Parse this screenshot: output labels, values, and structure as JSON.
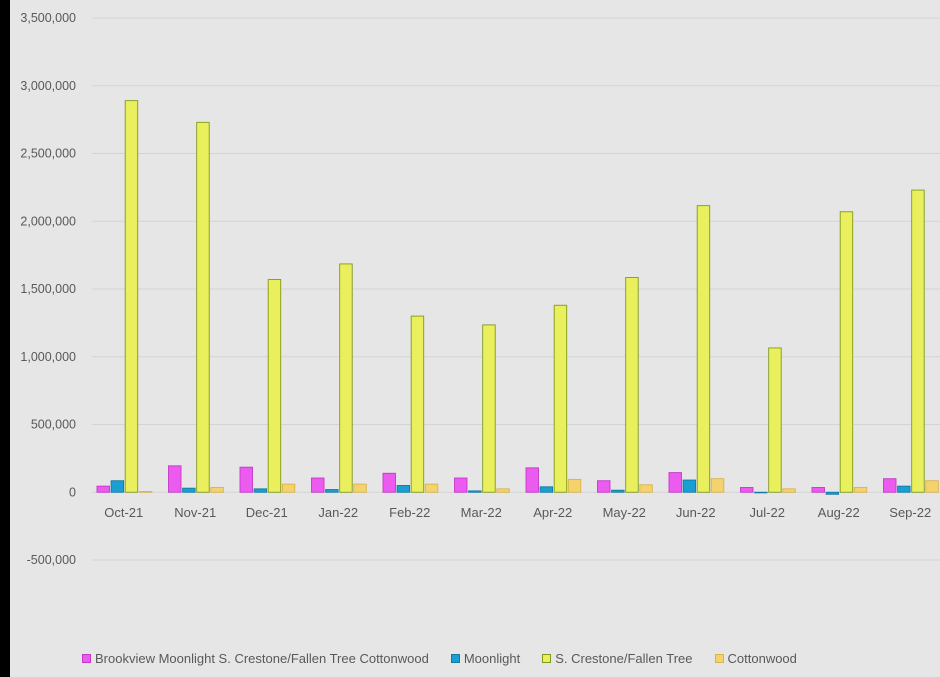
{
  "chart_data": {
    "type": "bar",
    "title": "",
    "xlabel": "",
    "ylabel": "",
    "ylim": [
      -500000,
      3500000
    ],
    "yticks": [
      "3,500,000",
      "3,000,000",
      "2,500,000",
      "2,000,000",
      "1,500,000",
      "1,000,000",
      "500,000",
      "0",
      "-500,000"
    ],
    "grid": true,
    "legend_position": "bottom",
    "categories": [
      "Oct-21",
      "Nov-21",
      "Dec-21",
      "Jan-22",
      "Feb-22",
      "Mar-22",
      "Apr-22",
      "May-22",
      "Jun-22",
      "Jul-22",
      "Aug-22",
      "Sep-22"
    ],
    "series": [
      {
        "name": "Brookview Moonlight S. Crestone/Fallen Tree Cottonwood",
        "color": "#ec5bf0",
        "stroke": "#c23ac6",
        "values": [
          45000,
          195000,
          185000,
          105000,
          140000,
          105000,
          180000,
          85000,
          145000,
          35000,
          35000,
          100000
        ]
      },
      {
        "name": "Moonlight",
        "color": "#1b9fd3",
        "stroke": "#137aa3",
        "values": [
          85000,
          30000,
          25000,
          20000,
          50000,
          10000,
          40000,
          15000,
          90000,
          0,
          -15000,
          45000
        ]
      },
      {
        "name": "S. Crestone/Fallen Tree",
        "color": "#eaf05d",
        "stroke": "#7f9a1a",
        "values": [
          2890000,
          2730000,
          1570000,
          1685000,
          1300000,
          1235000,
          1380000,
          1585000,
          2115000,
          1065000,
          2070000,
          2230000
        ]
      },
      {
        "name": "Cottonwood",
        "color": "#f4d36e",
        "stroke": "#d9b24a",
        "values": [
          5000,
          35000,
          60000,
          60000,
          60000,
          25000,
          95000,
          55000,
          100000,
          25000,
          35000,
          85000
        ]
      }
    ]
  }
}
